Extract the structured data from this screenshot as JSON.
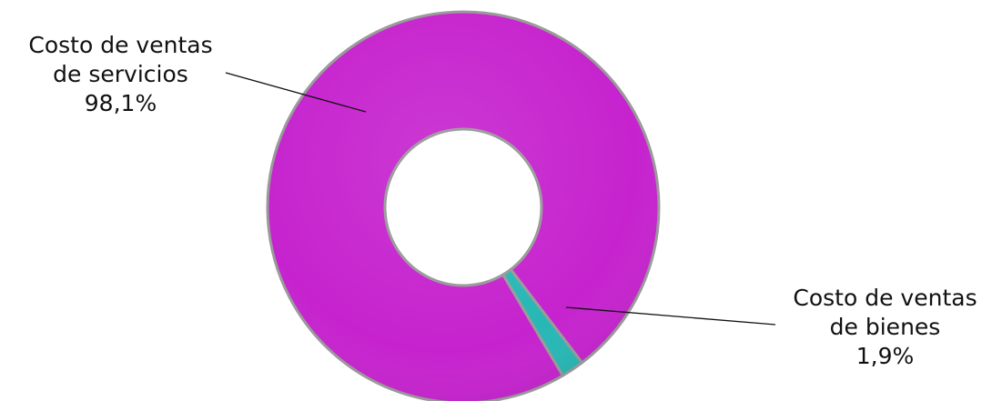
{
  "chart_data": {
    "type": "pie",
    "donut": true,
    "title": "",
    "slices": [
      {
        "label_line1": "Costo de ventas",
        "label_line2": "de servicios",
        "value": 98.1,
        "value_label": "98,1%",
        "color": "#C623CE"
      },
      {
        "label_line1": "Costo de ventas",
        "label_line2": "de bienes",
        "value": 1.9,
        "value_label": "1,9%",
        "color": "#27B7B5"
      }
    ],
    "legend": "none"
  }
}
